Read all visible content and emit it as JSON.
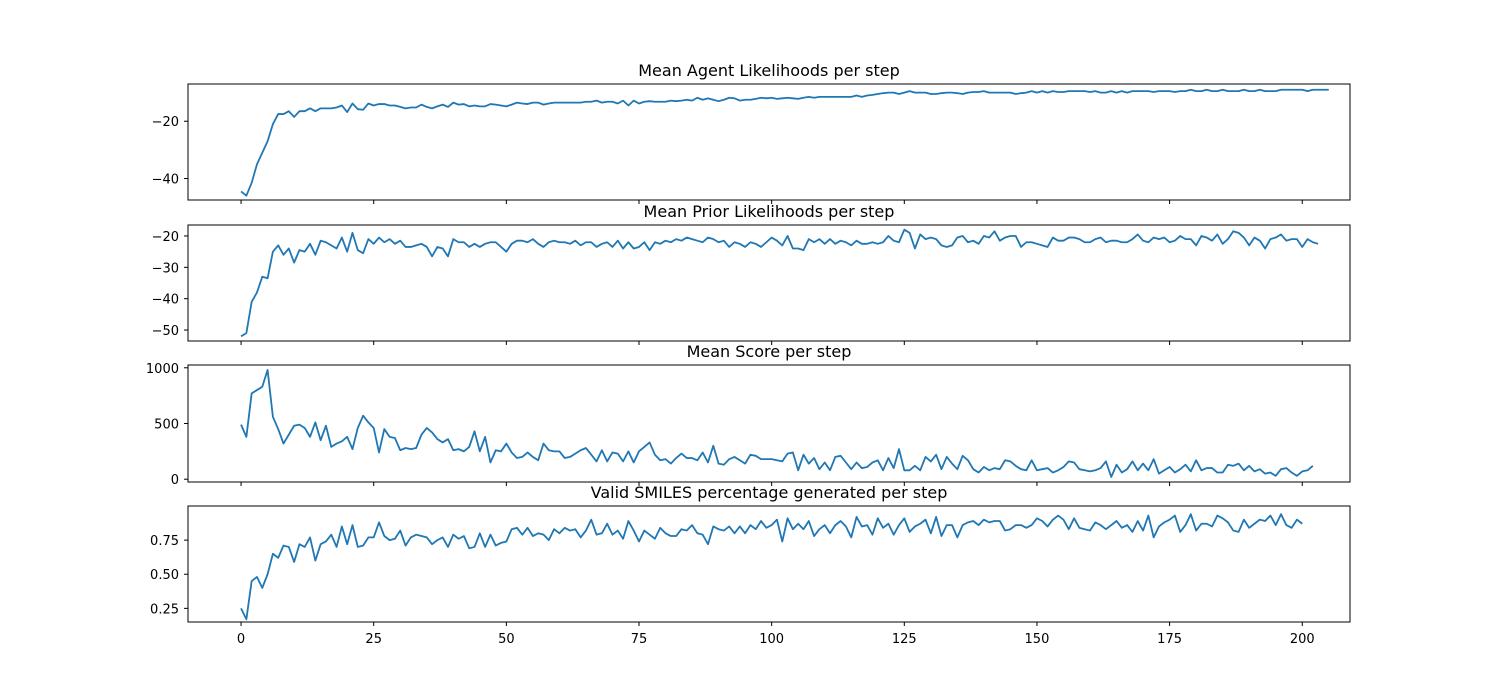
{
  "chart_data": [
    {
      "type": "line",
      "title": "Mean Agent Likelihoods per step",
      "xlabel": "",
      "ylabel": "",
      "xlim": [
        -10,
        209
      ],
      "ylim": [
        -47.5,
        -7.0
      ],
      "yticks": [
        -20,
        -40
      ],
      "ytick_labels": [
        "−20",
        "−40"
      ],
      "xticks": [
        0,
        25,
        50,
        75,
        100,
        125,
        150,
        175,
        200
      ],
      "xtick_labels": [],
      "color": "#1f77b4",
      "grid": false,
      "series": [
        {
          "x_start": 0,
          "x_step": 1,
          "values": [
            -44.5,
            -46.0,
            -41.5,
            -35.0,
            -31.0,
            -27.0,
            -21.0,
            -17.5,
            -17.5,
            -16.5,
            -18.5,
            -16.5,
            -16.5,
            -15.5,
            -16.5,
            -15.5,
            -15.5,
            -15.5,
            -15.2,
            -14.5,
            -16.8,
            -13.8,
            -15.8,
            -16.0,
            -13.8,
            -14.5,
            -14.0,
            -14.0,
            -14.5,
            -14.5,
            -15.0,
            -15.5,
            -15.2,
            -15.2,
            -14.2,
            -15.0,
            -15.5,
            -14.8,
            -14.2,
            -15.0,
            -13.5,
            -14.2,
            -14.0,
            -14.8,
            -14.5,
            -14.8,
            -14.8,
            -14.0,
            -14.2,
            -14.5,
            -14.8,
            -14.2,
            -13.5,
            -13.8,
            -14.0,
            -13.5,
            -13.5,
            -14.2,
            -13.8,
            -13.5,
            -13.5,
            -13.5,
            -13.5,
            -13.5,
            -13.5,
            -13.2,
            -13.2,
            -12.8,
            -13.5,
            -13.2,
            -13.2,
            -13.8,
            -12.8,
            -14.5,
            -12.8,
            -13.8,
            -13.2,
            -13.0,
            -13.2,
            -13.2,
            -13.2,
            -12.8,
            -13.0,
            -12.8,
            -12.5,
            -12.8,
            -11.8,
            -12.5,
            -12.0,
            -12.5,
            -13.0,
            -12.5,
            -11.8,
            -12.0,
            -12.8,
            -12.5,
            -12.5,
            -12.2,
            -11.8,
            -12.0,
            -11.8,
            -12.2,
            -12.0,
            -11.8,
            -12.0,
            -12.2,
            -11.8,
            -11.5,
            -11.8,
            -11.5,
            -11.5,
            -11.5,
            -11.5,
            -11.5,
            -11.5,
            -11.5,
            -11.0,
            -11.5,
            -11.0,
            -10.8,
            -10.5,
            -10.2,
            -10.0,
            -10.0,
            -10.5,
            -10.0,
            -9.5,
            -10.0,
            -10.0,
            -10.0,
            -10.5,
            -10.5,
            -10.2,
            -10.0,
            -10.0,
            -10.2,
            -10.5,
            -10.0,
            -9.8,
            -9.8,
            -9.5,
            -10.0,
            -10.0,
            -10.0,
            -10.0,
            -10.0,
            -10.5,
            -10.2,
            -10.0,
            -9.5,
            -10.0,
            -9.5,
            -10.0,
            -9.5,
            -9.8,
            -9.8,
            -9.5,
            -9.5,
            -9.5,
            -9.5,
            -9.8,
            -9.5,
            -10.0,
            -10.0,
            -9.5,
            -10.0,
            -9.5,
            -10.0,
            -9.5,
            -9.5,
            -9.5,
            -9.5,
            -9.8,
            -9.5,
            -9.5,
            -9.5,
            -9.8,
            -9.5,
            -9.5,
            -9.0,
            -9.5,
            -9.5,
            -9.0,
            -9.5,
            -9.5,
            -9.0,
            -9.5,
            -9.5,
            -9.5,
            -9.0,
            -9.5,
            -9.5,
            -9.0,
            -9.5,
            -9.5,
            -9.5,
            -9.0,
            -9.0,
            -9.0,
            -9.0,
            -9.0,
            -9.5,
            -9.0,
            -9.0,
            -9.0,
            -9.0
          ]
        }
      ]
    },
    {
      "type": "line",
      "title": "Mean Prior Likelihoods per step",
      "xlabel": "",
      "ylabel": "",
      "xlim": [
        -10,
        209
      ],
      "ylim": [
        -53.5,
        -16.5
      ],
      "yticks": [
        -20,
        -30,
        -40,
        -50
      ],
      "ytick_labels": [
        "−20",
        "−30",
        "−40",
        "−50"
      ],
      "xticks": [
        0,
        25,
        50,
        75,
        100,
        125,
        150,
        175,
        200
      ],
      "xtick_labels": [],
      "color": "#1f77b4",
      "grid": false,
      "series": [
        {
          "x_start": 0,
          "x_step": 1,
          "values": [
            -52.0,
            -51.0,
            -41.0,
            -38.0,
            -33.0,
            -33.5,
            -25.0,
            -23.0,
            -26.0,
            -24.0,
            -28.5,
            -24.5,
            -25.0,
            -22.5,
            -26.0,
            -21.5,
            -22.0,
            -23.0,
            -24.0,
            -20.5,
            -25.0,
            -19.0,
            -24.5,
            -25.5,
            -21.0,
            -22.5,
            -20.5,
            -22.0,
            -21.0,
            -22.5,
            -21.5,
            -23.5,
            -23.5,
            -23.0,
            -22.5,
            -23.5,
            -26.5,
            -23.5,
            -24.0,
            -26.5,
            -21.0,
            -22.0,
            -22.0,
            -23.5,
            -22.5,
            -23.5,
            -22.5,
            -22.0,
            -22.0,
            -23.5,
            -25.0,
            -22.5,
            -21.5,
            -21.5,
            -22.0,
            -21.0,
            -22.5,
            -23.5,
            -22.0,
            -21.5,
            -22.0,
            -22.0,
            -22.5,
            -21.5,
            -23.0,
            -22.0,
            -22.0,
            -23.5,
            -22.5,
            -22.0,
            -23.5,
            -21.5,
            -24.0,
            -22.0,
            -24.0,
            -23.5,
            -22.0,
            -24.5,
            -22.0,
            -22.5,
            -21.5,
            -22.0,
            -21.0,
            -21.5,
            -20.5,
            -21.0,
            -21.5,
            -22.0,
            -20.5,
            -21.0,
            -22.0,
            -21.5,
            -23.5,
            -22.0,
            -22.5,
            -23.5,
            -22.0,
            -22.5,
            -23.5,
            -22.0,
            -20.5,
            -21.5,
            -23.0,
            -20.0,
            -24.0,
            -24.0,
            -24.5,
            -21.0,
            -22.0,
            -21.0,
            -22.5,
            -21.0,
            -22.5,
            -21.5,
            -22.0,
            -23.0,
            -21.5,
            -22.5,
            -22.5,
            -22.0,
            -22.5,
            -22.0,
            -20.0,
            -21.5,
            -22.0,
            -18.0,
            -19.0,
            -24.0,
            -19.5,
            -21.0,
            -20.5,
            -21.0,
            -23.0,
            -23.5,
            -23.0,
            -20.5,
            -20.0,
            -22.0,
            -21.5,
            -22.5,
            -20.0,
            -20.5,
            -18.5,
            -21.5,
            -20.5,
            -20.0,
            -20.0,
            -23.5,
            -22.0,
            -22.0,
            -22.5,
            -23.0,
            -23.5,
            -20.5,
            -21.5,
            -21.5,
            -20.5,
            -20.5,
            -21.0,
            -22.0,
            -22.0,
            -21.0,
            -20.5,
            -22.0,
            -21.5,
            -21.5,
            -22.0,
            -22.0,
            -21.0,
            -19.5,
            -21.5,
            -22.0,
            -20.5,
            -21.0,
            -20.5,
            -22.0,
            -21.5,
            -20.0,
            -21.0,
            -21.0,
            -23.0,
            -20.0,
            -20.5,
            -21.5,
            -19.5,
            -22.5,
            -21.0,
            -18.5,
            -19.0,
            -20.5,
            -23.0,
            -20.5,
            -21.5,
            -24.0,
            -21.0,
            -20.5,
            -19.5,
            -21.5,
            -21.0,
            -21.0,
            -23.5,
            -21.0,
            -22.0,
            -22.5
          ]
        }
      ]
    },
    {
      "type": "line",
      "title": "Mean Score per step",
      "xlabel": "",
      "ylabel": "",
      "xlim": [
        -10,
        209
      ],
      "ylim": [
        -25,
        1025
      ],
      "yticks": [
        1000,
        500,
        0
      ],
      "ytick_labels": [
        "1000",
        "500",
        "0"
      ],
      "xticks": [
        0,
        25,
        50,
        75,
        100,
        125,
        150,
        175,
        200
      ],
      "xtick_labels": [],
      "color": "#1f77b4",
      "grid": false,
      "series": [
        {
          "x_start": 0,
          "x_step": 1,
          "values": [
            490,
            380,
            770,
            800,
            830,
            980,
            560,
            450,
            320,
            400,
            480,
            490,
            460,
            380,
            510,
            350,
            480,
            290,
            320,
            340,
            380,
            270,
            460,
            570,
            510,
            460,
            240,
            450,
            380,
            370,
            260,
            280,
            270,
            280,
            400,
            460,
            420,
            360,
            330,
            360,
            260,
            270,
            250,
            290,
            430,
            250,
            380,
            150,
            260,
            250,
            320,
            240,
            190,
            200,
            240,
            200,
            170,
            320,
            260,
            250,
            250,
            190,
            200,
            230,
            260,
            280,
            220,
            160,
            260,
            160,
            240,
            230,
            160,
            250,
            150,
            250,
            290,
            330,
            220,
            170,
            180,
            140,
            190,
            230,
            190,
            190,
            170,
            240,
            150,
            300,
            140,
            130,
            180,
            200,
            170,
            140,
            220,
            210,
            180,
            180,
            180,
            170,
            160,
            230,
            240,
            80,
            220,
            140,
            190,
            90,
            150,
            80,
            200,
            210,
            150,
            90,
            150,
            100,
            110,
            150,
            170,
            80,
            190,
            100,
            270,
            80,
            80,
            120,
            80,
            200,
            160,
            220,
            90,
            200,
            140,
            90,
            210,
            170,
            90,
            60,
            110,
            80,
            100,
            90,
            170,
            160,
            120,
            90,
            80,
            170,
            80,
            90,
            100,
            60,
            80,
            110,
            160,
            150,
            90,
            80,
            70,
            80,
            100,
            160,
            20,
            130,
            60,
            90,
            160,
            80,
            140,
            80,
            180,
            50,
            80,
            110,
            60,
            90,
            130,
            70,
            170,
            80,
            100,
            100,
            60,
            60,
            130,
            120,
            140,
            80,
            120,
            70,
            90,
            50,
            60,
            30,
            90,
            100,
            60,
            30,
            70,
            80,
            120
          ]
        }
      ]
    },
    {
      "type": "line",
      "title": "Valid SMILES percentage generated per step",
      "xlabel": "",
      "ylabel": "",
      "xlim": [
        -10,
        209
      ],
      "ylim": [
        0.15,
        1.0
      ],
      "yticks": [
        0.75,
        0.5,
        0.25
      ],
      "ytick_labels": [
        "0.75",
        "0.50",
        "0.25"
      ],
      "xticks": [
        0,
        25,
        50,
        75,
        100,
        125,
        150,
        175,
        200
      ],
      "xtick_labels": [
        "0",
        "25",
        "50",
        "75",
        "100",
        "125",
        "150",
        "175",
        "200"
      ],
      "color": "#1f77b4",
      "grid": false,
      "series": [
        {
          "x_start": 0,
          "x_step": 1,
          "values": [
            0.25,
            0.17,
            0.45,
            0.48,
            0.4,
            0.5,
            0.65,
            0.62,
            0.71,
            0.7,
            0.59,
            0.72,
            0.7,
            0.77,
            0.6,
            0.72,
            0.74,
            0.79,
            0.7,
            0.85,
            0.72,
            0.86,
            0.7,
            0.71,
            0.77,
            0.77,
            0.88,
            0.78,
            0.75,
            0.76,
            0.82,
            0.71,
            0.77,
            0.79,
            0.78,
            0.77,
            0.72,
            0.75,
            0.77,
            0.7,
            0.79,
            0.76,
            0.78,
            0.69,
            0.7,
            0.8,
            0.7,
            0.79,
            0.71,
            0.73,
            0.74,
            0.83,
            0.84,
            0.79,
            0.84,
            0.78,
            0.8,
            0.79,
            0.75,
            0.83,
            0.8,
            0.84,
            0.82,
            0.83,
            0.77,
            0.82,
            0.9,
            0.79,
            0.8,
            0.87,
            0.79,
            0.82,
            0.76,
            0.89,
            0.82,
            0.74,
            0.82,
            0.79,
            0.76,
            0.84,
            0.8,
            0.78,
            0.78,
            0.83,
            0.82,
            0.86,
            0.8,
            0.79,
            0.72,
            0.85,
            0.83,
            0.82,
            0.85,
            0.8,
            0.85,
            0.8,
            0.86,
            0.83,
            0.89,
            0.84,
            0.86,
            0.9,
            0.74,
            0.91,
            0.83,
            0.87,
            0.83,
            0.89,
            0.78,
            0.83,
            0.86,
            0.8,
            0.86,
            0.89,
            0.85,
            0.77,
            0.92,
            0.85,
            0.86,
            0.79,
            0.91,
            0.84,
            0.87,
            0.79,
            0.86,
            0.91,
            0.81,
            0.85,
            0.87,
            0.9,
            0.8,
            0.92,
            0.78,
            0.86,
            0.86,
            0.77,
            0.86,
            0.88,
            0.89,
            0.86,
            0.9,
            0.88,
            0.89,
            0.89,
            0.82,
            0.83,
            0.86,
            0.86,
            0.84,
            0.86,
            0.91,
            0.89,
            0.85,
            0.9,
            0.93,
            0.9,
            0.83,
            0.91,
            0.84,
            0.83,
            0.82,
            0.88,
            0.86,
            0.83,
            0.86,
            0.89,
            0.84,
            0.86,
            0.81,
            0.89,
            0.82,
            0.93,
            0.77,
            0.85,
            0.88,
            0.9,
            0.93,
            0.81,
            0.86,
            0.94,
            0.82,
            0.87,
            0.87,
            0.85,
            0.93,
            0.91,
            0.88,
            0.82,
            0.81,
            0.9,
            0.84,
            0.87,
            0.9,
            0.89,
            0.93,
            0.86,
            0.94,
            0.86,
            0.84,
            0.9,
            0.87
          ]
        }
      ]
    }
  ]
}
